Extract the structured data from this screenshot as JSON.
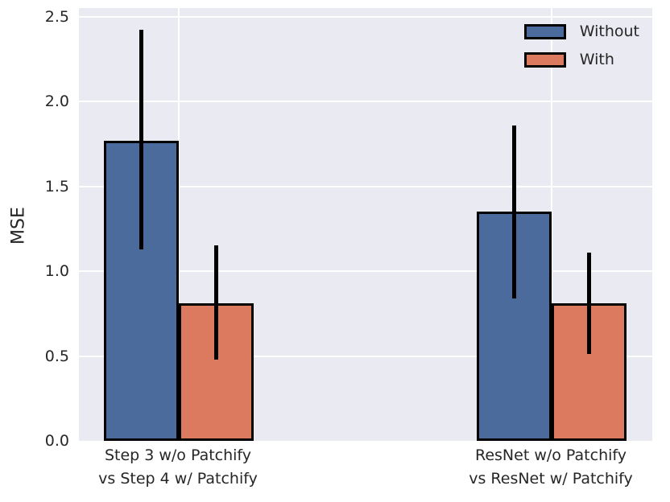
{
  "chart_data": {
    "type": "bar",
    "title": "",
    "ylabel": "MSE",
    "xlabel": "",
    "categories": [
      "Step 3 w/o Patchify\nvs Step 4 w/ Patchify",
      "ResNet w/o Patchify\nvs ResNet w/ Patchify"
    ],
    "series": [
      {
        "name": "Without",
        "color": "#4C6B9D",
        "values": [
          1.77,
          1.35
        ],
        "ci_low": [
          1.13,
          0.84
        ],
        "ci_high": [
          2.42,
          1.86
        ]
      },
      {
        "name": "With",
        "color": "#DB7A5F",
        "values": [
          0.81,
          0.81
        ],
        "ci_low": [
          0.48,
          0.51
        ],
        "ci_high": [
          1.15,
          1.11
        ]
      }
    ],
    "yticks": [
      "0.0",
      "0.5",
      "1.0",
      "1.5",
      "2.0",
      "2.5"
    ],
    "ylim": [
      0,
      2.55
    ],
    "grid": true,
    "legend_position": "upper right",
    "style": {
      "plot_background": "#EAEAF2",
      "grid_color": "#FFFFFF",
      "bar_edge_color": "#000000",
      "error_bar_color": "#000000",
      "text_color": "#262626"
    }
  }
}
